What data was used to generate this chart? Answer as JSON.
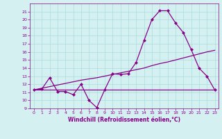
{
  "xlabel": "Windchill (Refroidissement éolien,°C)",
  "x": [
    0,
    1,
    2,
    3,
    4,
    5,
    6,
    7,
    8,
    9,
    10,
    11,
    12,
    13,
    14,
    15,
    16,
    17,
    18,
    19,
    20,
    21,
    22,
    23
  ],
  "line1_y": [
    11.3,
    11.4,
    12.8,
    11.1,
    11.1,
    10.7,
    12.0,
    10.0,
    9.1,
    11.3,
    13.3,
    13.2,
    13.3,
    14.7,
    17.4,
    20.0,
    21.1,
    21.1,
    19.6,
    18.4,
    16.3,
    14.0,
    13.0,
    11.3
  ],
  "line2_y": [
    11.3,
    11.3,
    11.3,
    11.3,
    11.3,
    11.3,
    11.3,
    11.3,
    11.3,
    11.3,
    11.3,
    11.3,
    11.3,
    11.3,
    11.3,
    11.3,
    11.3,
    11.3,
    11.3,
    11.3,
    11.3,
    11.3,
    11.3,
    11.3
  ],
  "line3_y": [
    11.3,
    11.5,
    11.7,
    11.9,
    12.1,
    12.3,
    12.5,
    12.65,
    12.8,
    13.0,
    13.2,
    13.4,
    13.6,
    13.8,
    14.0,
    14.3,
    14.55,
    14.75,
    15.0,
    15.25,
    15.5,
    15.75,
    16.0,
    16.2
  ],
  "line_color": "#880088",
  "bg_color": "#d4f0f0",
  "grid_color": "#aadddd",
  "ylim": [
    9,
    22
  ],
  "xlim": [
    -0.5,
    23.5
  ],
  "yticks": [
    9,
    10,
    11,
    12,
    13,
    14,
    15,
    16,
    17,
    18,
    19,
    20,
    21
  ],
  "xticks": [
    0,
    1,
    2,
    3,
    4,
    5,
    6,
    7,
    8,
    9,
    10,
    11,
    12,
    13,
    14,
    15,
    16,
    17,
    18,
    19,
    20,
    21,
    22,
    23
  ],
  "marker": "D",
  "markersize": 2.0,
  "linewidth": 0.9
}
